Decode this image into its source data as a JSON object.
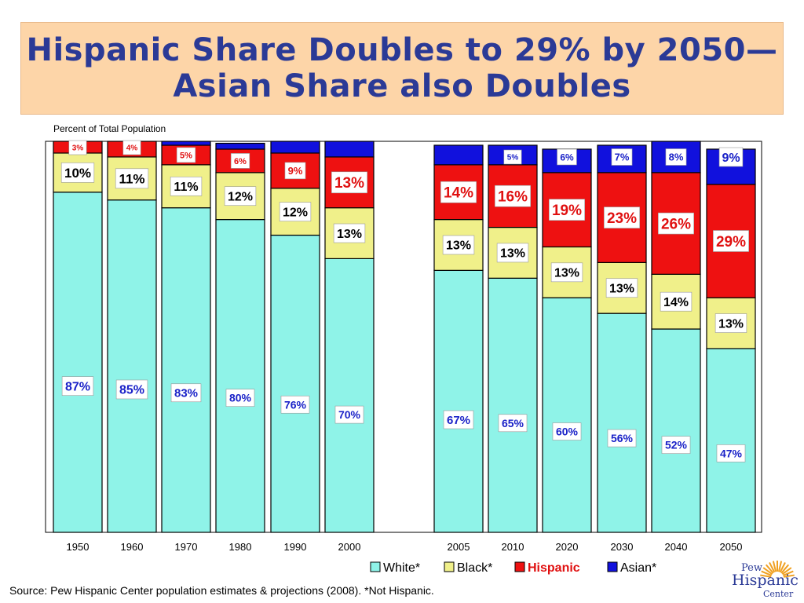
{
  "header": {
    "title_line1": "Hispanic Share Doubles to 29% by 2050—",
    "title_line2": "Asian Share also Doubles"
  },
  "subtitle": "Percent of Total Population",
  "source": "Source:  Pew Hispanic Center population estimates & projections (2008).  *Not Hispanic.",
  "logo": {
    "line1": "Pew",
    "line2": "Hispanic",
    "line3": "Center"
  },
  "chart_data": {
    "type": "bar",
    "stacked": true,
    "ylabel": "Percent of Total Population",
    "ylim": [
      0,
      100
    ],
    "grid": false,
    "legend_position": "bottom",
    "categories": [
      "1950",
      "1960",
      "1970",
      "1980",
      "1990",
      "2000",
      "2005",
      "2010",
      "2020",
      "2030",
      "2040",
      "2050"
    ],
    "series": [
      {
        "name": "White*",
        "color": "#8ff3e8",
        "label_color": "#1a22c8",
        "values": [
          87,
          85,
          83,
          80,
          76,
          70,
          67,
          65,
          60,
          56,
          52,
          47
        ],
        "labels": [
          "87%",
          "85%",
          "83%",
          "80%",
          "76%",
          "70%",
          "67%",
          "65%",
          "60%",
          "56%",
          "52%",
          "47%"
        ]
      },
      {
        "name": "Black*",
        "color": "#f0f08a",
        "label_color": "#000000",
        "values": [
          10,
          11,
          11,
          12,
          12,
          13,
          13,
          13,
          13,
          13,
          14,
          13
        ],
        "labels": [
          "10%",
          "11%",
          "11%",
          "12%",
          "12%",
          "13%",
          "13%",
          "13%",
          "13%",
          "13%",
          "14%",
          "13%"
        ]
      },
      {
        "name": "Hispanic",
        "color": "#ee1111",
        "label_color": "#e01010",
        "values": [
          3,
          4,
          5,
          6,
          9,
          13,
          14,
          16,
          19,
          23,
          26,
          29
        ],
        "labels": [
          "3%",
          "4%",
          "5%",
          "6%",
          "9%",
          "13%",
          "14%",
          "16%",
          "19%",
          "23%",
          "26%",
          "29%"
        ]
      },
      {
        "name": "Asian*",
        "color": "#1111dd",
        "label_color": "#1a22c8",
        "values": [
          0.5,
          0.5,
          1,
          1.5,
          3,
          5,
          5,
          5,
          6,
          7,
          8,
          9
        ],
        "labels": [
          "",
          "",
          "",
          "",
          "",
          "",
          "",
          "5%",
          "6%",
          "7%",
          "8%",
          "9%"
        ]
      }
    ]
  }
}
